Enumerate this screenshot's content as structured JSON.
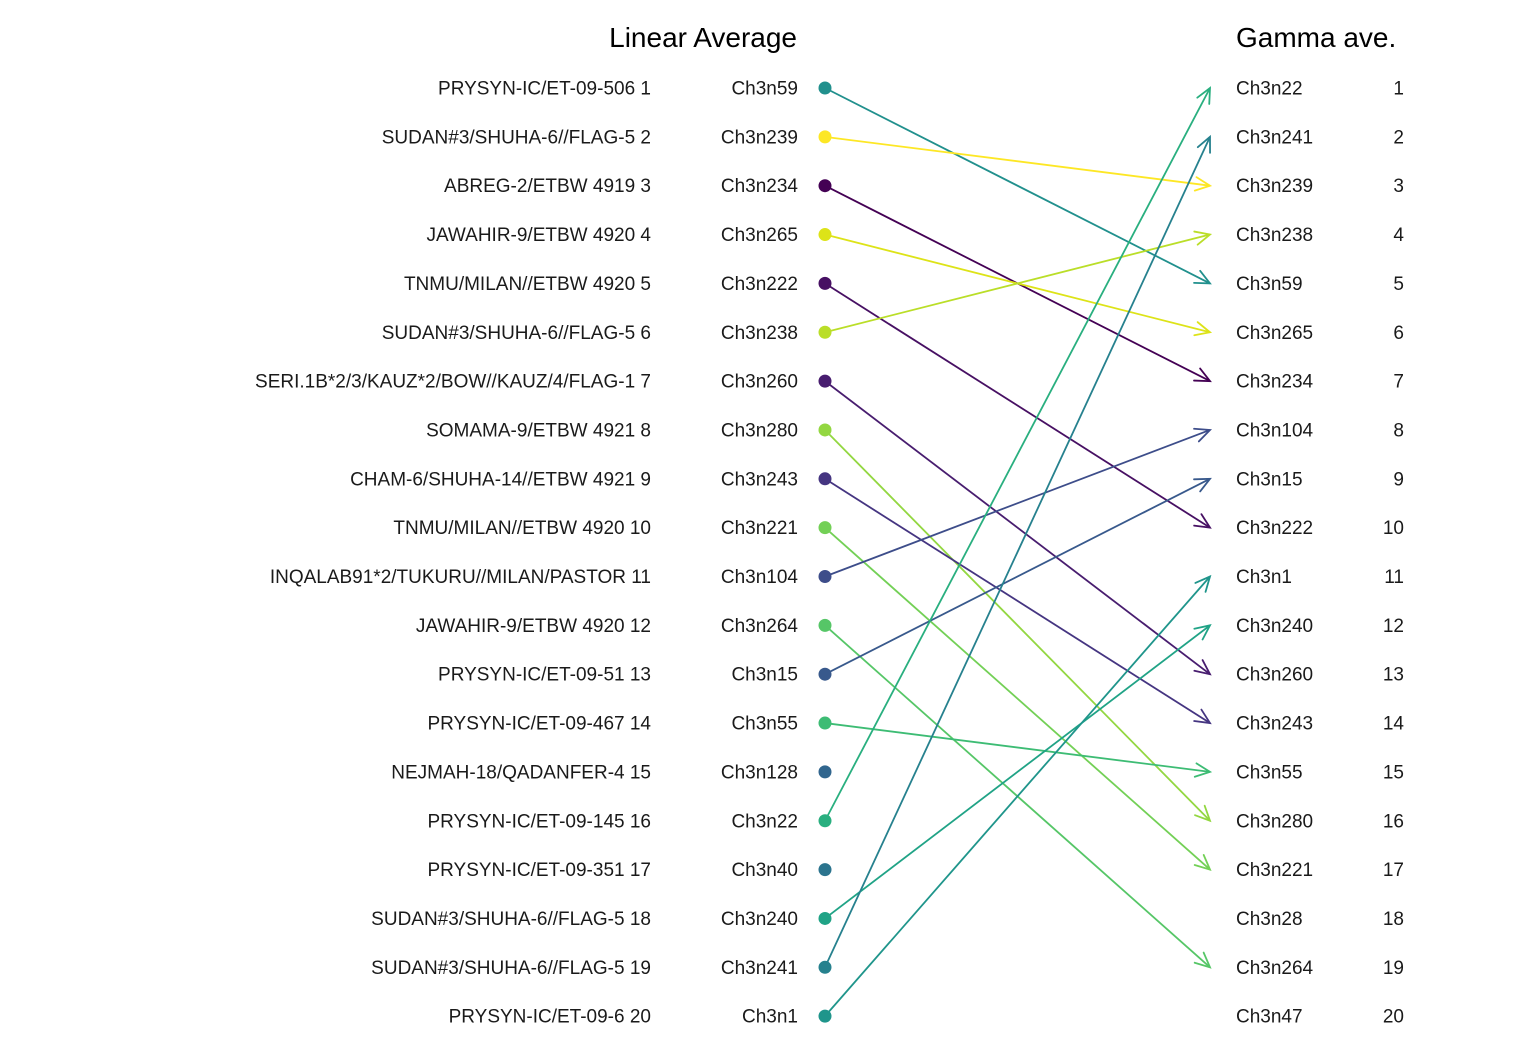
{
  "chart_data": {
    "type": "slope",
    "left_title": "Linear Average",
    "right_title": "Gamma ave.",
    "left_rows": [
      {
        "rank": 1,
        "name": "PRYSYN-IC/ET-09-506 1",
        "id": "Ch3n59",
        "color": "#21908d",
        "target_rank": 5
      },
      {
        "rank": 2,
        "name": "SUDAN#3/SHUHA-6//FLAG-5 2",
        "id": "Ch3n239",
        "color": "#fde725",
        "target_rank": 3
      },
      {
        "rank": 3,
        "name": "ABREG-2/ETBW 4919 3",
        "id": "Ch3n234",
        "color": "#440154",
        "target_rank": 7
      },
      {
        "rank": 4,
        "name": "JAWAHIR-9/ETBW 4920 4",
        "id": "Ch3n265",
        "color": "#dde318",
        "target_rank": 6
      },
      {
        "rank": 5,
        "name": "TNMU/MILAN//ETBW 4920 5",
        "id": "Ch3n222",
        "color": "#471063",
        "target_rank": 10
      },
      {
        "rank": 6,
        "name": "SUDAN#3/SHUHA-6//FLAG-5 6",
        "id": "Ch3n238",
        "color": "#bade28",
        "target_rank": 4
      },
      {
        "rank": 7,
        "name": "SERI.1B*2/3/KAUZ*2/BOW//KAUZ/4/FLAG-1 7",
        "id": "Ch3n260",
        "color": "#481d6f",
        "target_rank": 13
      },
      {
        "rank": 8,
        "name": "SOMAMA-9/ETBW 4921 8",
        "id": "Ch3n280",
        "color": "#93d741",
        "target_rank": 16
      },
      {
        "rank": 9,
        "name": "CHAM-6/SHUHA-14//ETBW 4921 9",
        "id": "Ch3n243",
        "color": "#453581",
        "target_rank": 14
      },
      {
        "rank": 10,
        "name": "TNMU/MILAN//ETBW 4920 10",
        "id": "Ch3n221",
        "color": "#73d056",
        "target_rank": 17
      },
      {
        "rank": 11,
        "name": "INQALAB91*2/TUKURU//MILAN/PASTOR 11",
        "id": "Ch3n104",
        "color": "#3d4d8a",
        "target_rank": 8
      },
      {
        "rank": 12,
        "name": "JAWAHIR-9/ETBW 4920 12",
        "id": "Ch3n264",
        "color": "#56c667",
        "target_rank": 19
      },
      {
        "rank": 13,
        "name": "PRYSYN-IC/ET-09-51 13",
        "id": "Ch3n15",
        "color": "#38598c",
        "target_rank": 9
      },
      {
        "rank": 14,
        "name": "PRYSYN-IC/ET-09-467 14",
        "id": "Ch3n55",
        "color": "#3dbc74",
        "target_rank": 15
      },
      {
        "rank": 15,
        "name": "NEJMAH-18/QADANFER-4 15",
        "id": "Ch3n128",
        "color": "#31668e",
        "target_rank": null
      },
      {
        "rank": 16,
        "name": "PRYSYN-IC/ET-09-145 16",
        "id": "Ch3n22",
        "color": "#29af7f",
        "target_rank": 1
      },
      {
        "rank": 17,
        "name": "PRYSYN-IC/ET-09-351 17",
        "id": "Ch3n40",
        "color": "#2b748e",
        "target_rank": null
      },
      {
        "rank": 18,
        "name": "SUDAN#3/SHUHA-6//FLAG-5 18",
        "id": "Ch3n240",
        "color": "#20a386",
        "target_rank": 12
      },
      {
        "rank": 19,
        "name": "SUDAN#3/SHUHA-6//FLAG-5 19",
        "id": "Ch3n241",
        "color": "#26818e",
        "target_rank": 2
      },
      {
        "rank": 20,
        "name": "PRYSYN-IC/ET-09-6 20",
        "id": "Ch3n1",
        "color": "#1f958b",
        "target_rank": 11
      }
    ],
    "right_rows": [
      {
        "id": "Ch3n22",
        "rank": "1"
      },
      {
        "id": "Ch3n241",
        "rank": "2"
      },
      {
        "id": "Ch3n239",
        "rank": "3"
      },
      {
        "id": "Ch3n238",
        "rank": "4"
      },
      {
        "id": "Ch3n59",
        "rank": "5"
      },
      {
        "id": "Ch3n265",
        "rank": "6"
      },
      {
        "id": "Ch3n234",
        "rank": "7"
      },
      {
        "id": "Ch3n104",
        "rank": "8"
      },
      {
        "id": "Ch3n15",
        "rank": "9"
      },
      {
        "id": "Ch3n222",
        "rank": "10"
      },
      {
        "id": "Ch3n1",
        "rank": "11"
      },
      {
        "id": "Ch3n240",
        "rank": "12"
      },
      {
        "id": "Ch3n260",
        "rank": "13"
      },
      {
        "id": "Ch3n243",
        "rank": "14"
      },
      {
        "id": "Ch3n55",
        "rank": "15"
      },
      {
        "id": "Ch3n280",
        "rank": "16"
      },
      {
        "id": "Ch3n221",
        "rank": "17"
      },
      {
        "id": "Ch3n28",
        "rank": "18"
      },
      {
        "id": "Ch3n264",
        "rank": "19"
      },
      {
        "id": "Ch3n47",
        "rank": "20"
      }
    ]
  }
}
